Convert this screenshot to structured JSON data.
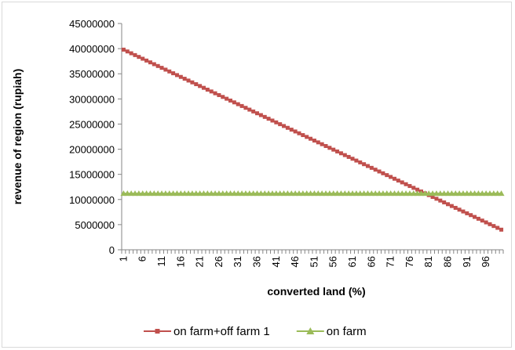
{
  "chart_data": {
    "type": "line",
    "title": "",
    "xlabel": "converted land (%)",
    "ylabel": "revenue of region (rupiah)",
    "ylim": [
      0,
      45000000
    ],
    "y_ticks": [
      "0",
      "5000000",
      "10000000",
      "15000000",
      "20000000",
      "25000000",
      "30000000",
      "35000000",
      "40000000",
      "45000000"
    ],
    "x_tick_labels": [
      "1",
      "6",
      "11",
      "16",
      "21",
      "26",
      "31",
      "36",
      "41",
      "46",
      "51",
      "56",
      "61",
      "66",
      "71",
      "76",
      "81",
      "86",
      "91",
      "96"
    ],
    "x_range": [
      1,
      100
    ],
    "grid": false,
    "legend_position": "bottom",
    "series": [
      {
        "name": "on farm+off farm 1",
        "color": "#c0504d",
        "marker": "square",
        "x_start": 1,
        "x_end": 100,
        "y_start": 39800000,
        "y_end": 4000000
      },
      {
        "name": "on farm",
        "color": "#9bbb59",
        "marker": "triangle",
        "x_start": 1,
        "x_end": 100,
        "y_start": 11200000,
        "y_end": 11200000
      }
    ]
  }
}
